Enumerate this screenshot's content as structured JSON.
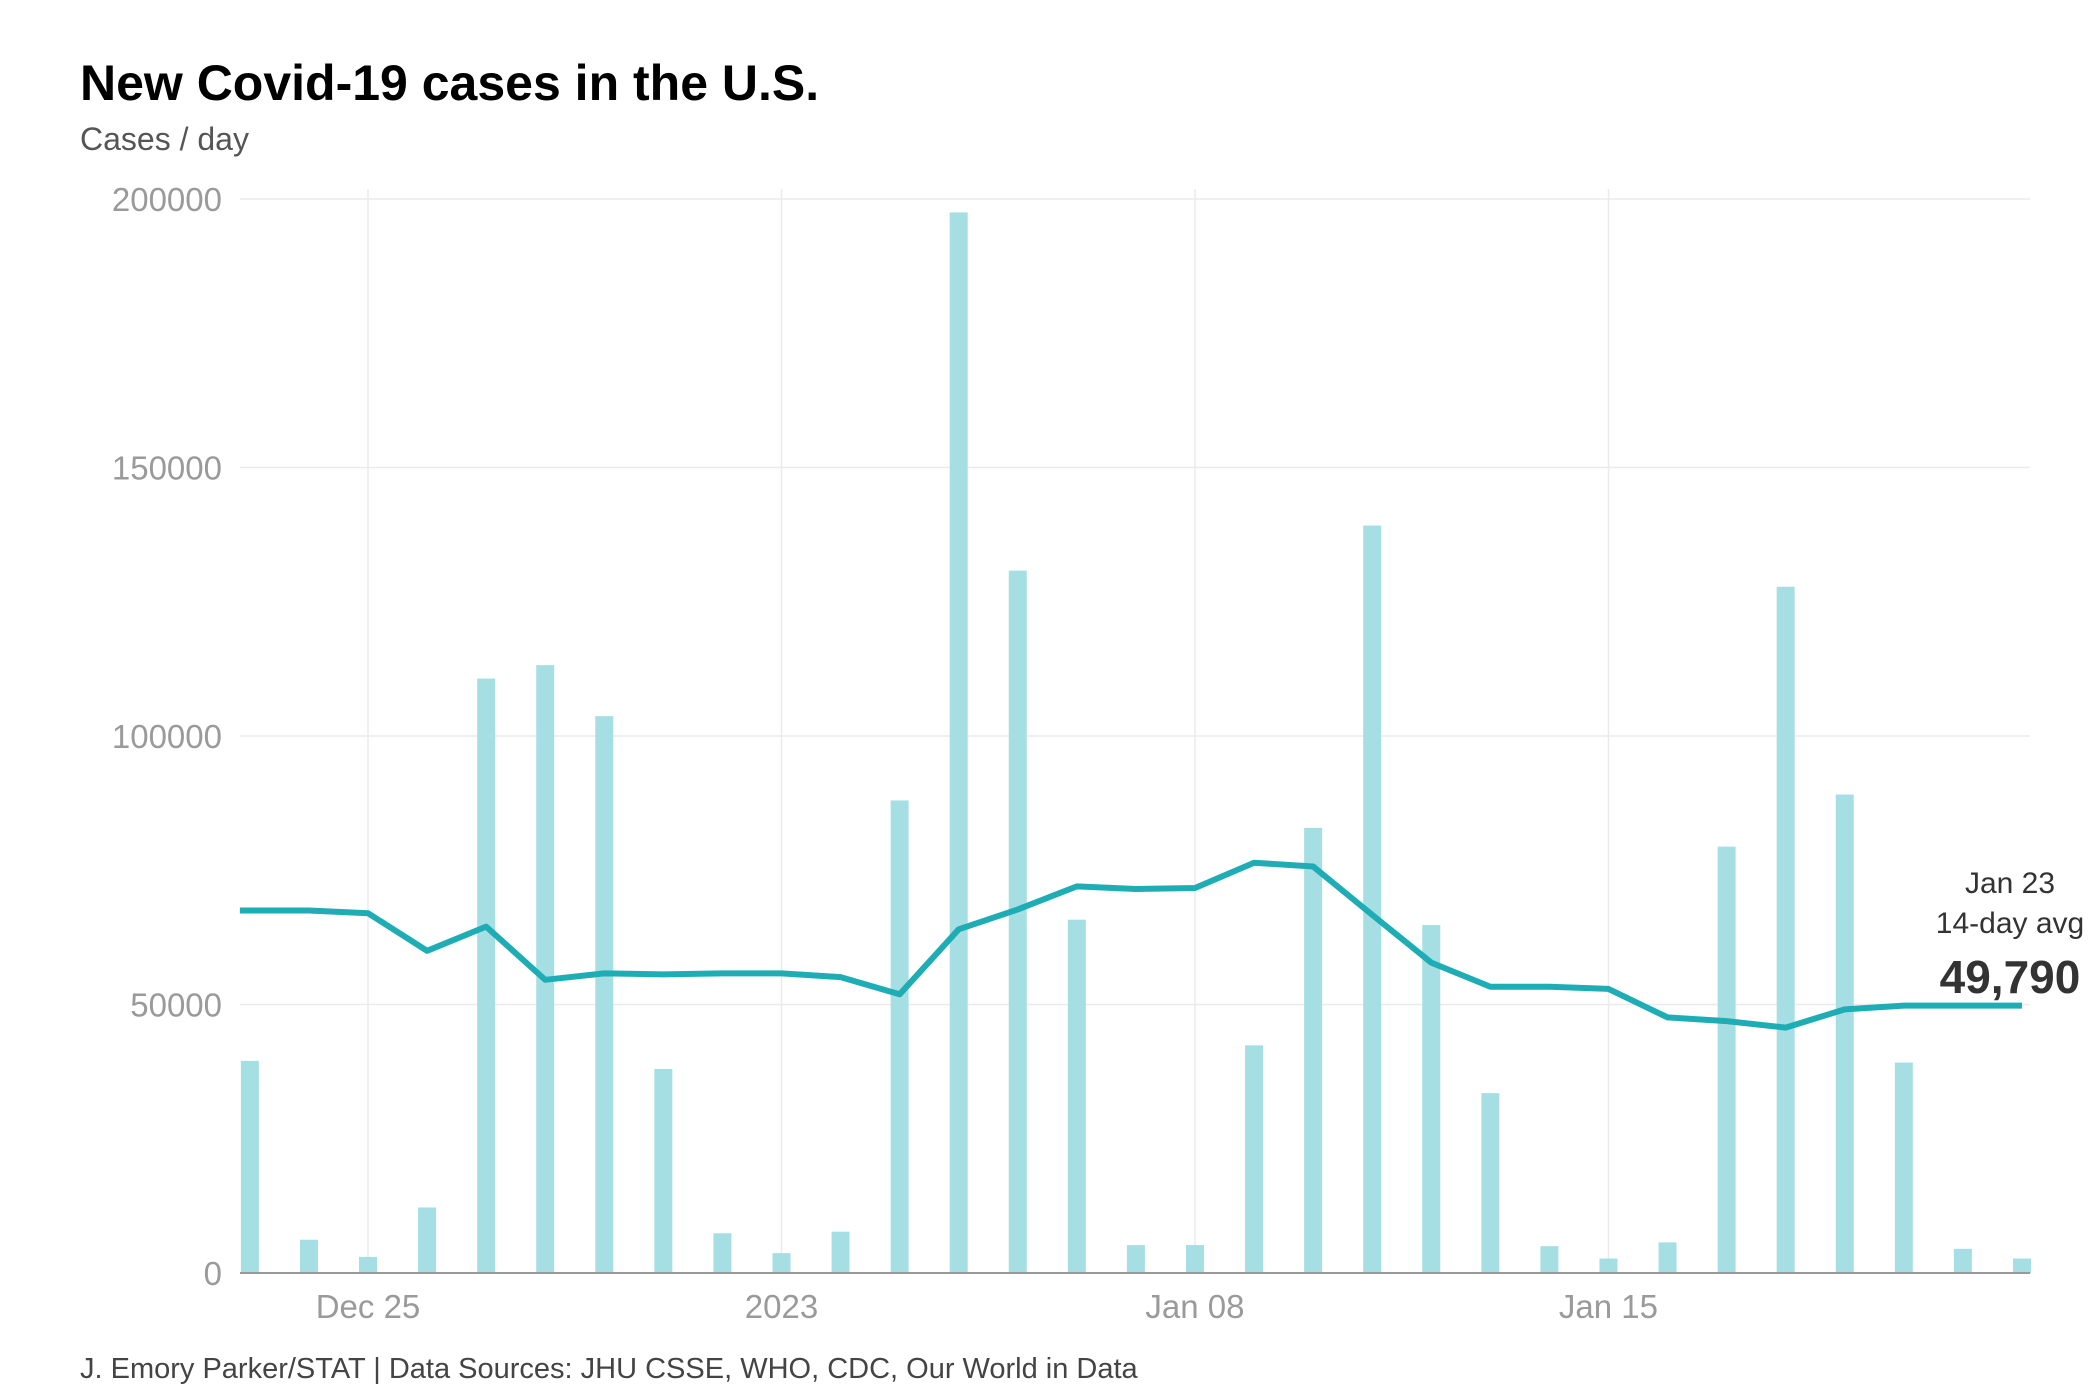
{
  "chart_data": {
    "type": "bar+line",
    "title": "New Covid-19 cases in the U.S.",
    "subtitle": "Cases / day",
    "source": "J. Emory Parker/STAT | Data Sources: JHU CSSE, WHO, CDC, Our World in Data",
    "ylim": [
      0,
      200000
    ],
    "yticks": [
      0,
      50000,
      100000,
      150000,
      200000
    ],
    "ytick_labels": [
      "0",
      "50000",
      "100000",
      "150000",
      "200000"
    ],
    "xticks": [
      {
        "date": "2022-12-25",
        "label": "Dec 25"
      },
      {
        "date": "2023-01-01",
        "label": "2023"
      },
      {
        "date": "2023-01-08",
        "label": "Jan 08"
      },
      {
        "date": "2023-01-15",
        "label": "Jan 15"
      }
    ],
    "grid": true,
    "x": [
      "2022-12-23",
      "2022-12-24",
      "2022-12-25",
      "2022-12-26",
      "2022-12-27",
      "2022-12-28",
      "2022-12-29",
      "2022-12-30",
      "2022-12-31",
      "2023-01-01",
      "2023-01-02",
      "2023-01-03",
      "2023-01-04",
      "2023-01-05",
      "2023-01-06",
      "2023-01-07",
      "2023-01-08",
      "2023-01-09",
      "2023-01-10",
      "2023-01-11",
      "2023-01-12",
      "2023-01-13",
      "2023-01-14",
      "2023-01-15",
      "2023-01-16",
      "2023-01-17",
      "2023-01-18",
      "2023-01-19",
      "2023-01-20",
      "2023-01-21",
      "2023-01-22"
    ],
    "series": [
      {
        "type": "bar",
        "color": "#a6dfe3",
        "values": [
          39500,
          6200,
          3000,
          12200,
          110700,
          113200,
          103700,
          38000,
          7400,
          3700,
          7700,
          88000,
          197500,
          130800,
          65800,
          5200,
          5200,
          42400,
          82900,
          139200,
          64800,
          33500,
          5000,
          2700,
          5700,
          79400,
          127800,
          89100,
          39200,
          4500,
          2700
        ]
      },
      {
        "type": "line",
        "name": "14-day avg",
        "color": "#1fadb5",
        "values": [
          67500,
          67500,
          67000,
          60000,
          64500,
          54600,
          55800,
          55600,
          55800,
          55800,
          55100,
          51900,
          64000,
          67700,
          72000,
          71500,
          71700,
          76400,
          75700,
          66700,
          57800,
          53300,
          53300,
          52900,
          47600,
          46900,
          45700,
          49100,
          49800,
          49800,
          49790
        ]
      }
    ],
    "annotation": {
      "date": "Jan 23",
      "label": "14-day avg",
      "value": "49,790"
    }
  }
}
